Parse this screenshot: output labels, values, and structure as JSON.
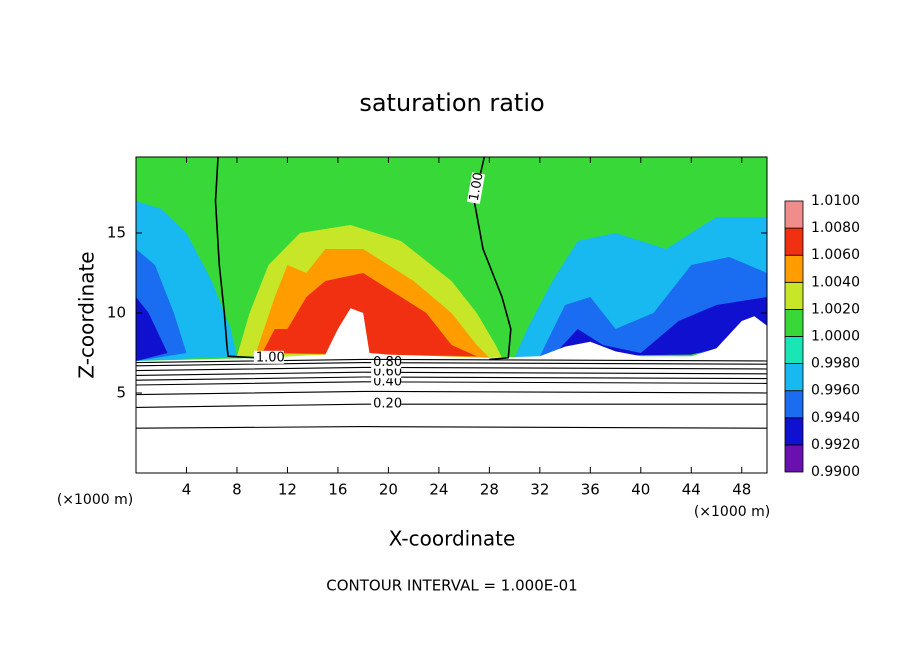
{
  "chart_data": {
    "type": "contour",
    "title": "saturation ratio",
    "x_label": "X-coordinate",
    "y_label": "Z-coordinate",
    "x_unit": "(×1000 m)",
    "y_unit": "(×1000 m)",
    "footer": "CONTOUR INTERVAL = 1.000E-01",
    "xlim": [
      0,
      50
    ],
    "ylim": [
      0,
      19.75
    ],
    "xticks": [
      4,
      8,
      12,
      16,
      20,
      24,
      28,
      32,
      36,
      40,
      44,
      48
    ],
    "yticks": [
      5,
      10,
      15
    ],
    "colorbar": {
      "levels": [
        {
          "value": 0.99,
          "label": "0.9900"
        },
        {
          "value": 0.992,
          "label": "0.9920"
        },
        {
          "value": 0.994,
          "label": "0.9940"
        },
        {
          "value": 0.996,
          "label": "0.9960"
        },
        {
          "value": 0.998,
          "label": "0.9980"
        },
        {
          "value": 1.0,
          "label": "1.0000"
        },
        {
          "value": 1.002,
          "label": "1.0020"
        },
        {
          "value": 1.004,
          "label": "1.0040"
        },
        {
          "value": 1.006,
          "label": "1.0060"
        },
        {
          "value": 1.008,
          "label": "1.0080"
        },
        {
          "value": 1.01,
          "label": "1.0100"
        }
      ],
      "colors": [
        "#6a10b0",
        "#1010d0",
        "#1a6cf0",
        "#18b8f0",
        "#18e6b4",
        "#38d838",
        "#c8e628",
        "#ff9c00",
        "#f03010",
        "#f08c8c"
      ]
    },
    "field": [
      {
        "value": 1.001,
        "x": [
          0,
          50,
          50,
          0
        ],
        "z": [
          7,
          7,
          19.75,
          19.75
        ]
      },
      {
        "value": 0.997,
        "x": [
          0,
          0,
          2,
          4,
          6,
          7.5,
          8
        ],
        "z": [
          7,
          17,
          16.5,
          15,
          12,
          9,
          7.3
        ]
      },
      {
        "value": 0.997,
        "x": [
          30,
          31,
          33,
          35,
          38,
          42,
          46,
          50,
          50,
          45
        ],
        "z": [
          7.2,
          9,
          12,
          14.5,
          15,
          14,
          16,
          16,
          8.5,
          8
        ]
      },
      {
        "value": 0.995,
        "x": [
          0,
          0,
          1.5,
          3,
          4
        ],
        "z": [
          7,
          14,
          13,
          10,
          7.5
        ]
      },
      {
        "value": 0.995,
        "x": [
          32,
          34,
          36,
          38,
          41,
          44,
          47,
          50,
          50,
          45
        ],
        "z": [
          7.3,
          10.5,
          11,
          9,
          10,
          13,
          13.5,
          12.5,
          8.5,
          7.5
        ]
      },
      {
        "value": 0.993,
        "x": [
          0,
          0,
          1,
          2.5
        ],
        "z": [
          7,
          11,
          10,
          7.5
        ]
      },
      {
        "value": 0.993,
        "x": [
          33,
          35,
          37,
          40,
          43,
          46,
          50,
          50,
          44
        ],
        "z": [
          7.3,
          9,
          8,
          7.5,
          9.5,
          10.5,
          11,
          8.5,
          7.4
        ]
      },
      {
        "value": 1.003,
        "x": [
          8,
          9,
          10.5,
          13,
          17,
          21,
          25,
          27,
          28.5,
          29
        ],
        "z": [
          7.3,
          10,
          13,
          15,
          15.5,
          14.5,
          12,
          10,
          8,
          7.2
        ]
      },
      {
        "value": 1.005,
        "x": [
          9.5,
          11,
          12,
          13.5,
          15,
          18,
          22,
          25,
          27,
          28
        ],
        "z": [
          7.5,
          11,
          13,
          12.5,
          14,
          14,
          12,
          10,
          8,
          7.2
        ]
      },
      {
        "value": 1.007,
        "x": [
          10,
          11,
          12,
          13.5,
          15,
          18,
          20,
          23,
          25,
          27
        ],
        "z": [
          7.5,
          9,
          9,
          11,
          12,
          12.5,
          11.5,
          10,
          8,
          7.3
        ]
      }
    ],
    "mask": {
      "x": [
        0,
        5,
        10,
        15,
        16,
        17,
        18,
        18.5,
        20,
        28,
        32,
        34,
        36,
        38,
        40,
        44,
        46,
        48,
        49,
        50,
        50,
        0
      ],
      "z": [
        7,
        7.1,
        7.2,
        7.4,
        9,
        10.3,
        10,
        7.5,
        7.4,
        7.2,
        7.3,
        7.9,
        8.2,
        7.6,
        7.3,
        7.3,
        7.8,
        9.5,
        9.8,
        9.2,
        0,
        0
      ]
    },
    "contours": [
      {
        "level": 0.1,
        "x": [
          0,
          18,
          50
        ],
        "z": [
          2.8,
          2.9,
          2.8
        ]
      },
      {
        "level": 0.2,
        "label": "0.20",
        "x": [
          0,
          18,
          50
        ],
        "z": [
          4.1,
          4.3,
          4.3
        ]
      },
      {
        "level": 0.3,
        "x": [
          0,
          18,
          50
        ],
        "z": [
          4.9,
          5.1,
          5.0
        ]
      },
      {
        "level": 0.4,
        "label": "0.40",
        "x": [
          0,
          18,
          50
        ],
        "z": [
          5.5,
          5.7,
          5.6
        ]
      },
      {
        "level": 0.5,
        "x": [
          0,
          18,
          50
        ],
        "z": [
          5.8,
          6.0,
          5.9
        ]
      },
      {
        "level": 0.6,
        "label": "0.60",
        "x": [
          0,
          18,
          50
        ],
        "z": [
          6.1,
          6.3,
          6.2
        ]
      },
      {
        "level": 0.7,
        "x": [
          0,
          18,
          50
        ],
        "z": [
          6.4,
          6.6,
          6.5
        ]
      },
      {
        "level": 0.8,
        "label": "0.80",
        "x": [
          0,
          18,
          50
        ],
        "z": [
          6.7,
          6.9,
          6.8
        ]
      },
      {
        "level": 0.9,
        "x": [
          0,
          18,
          50
        ],
        "z": [
          6.9,
          7.1,
          7.0
        ]
      },
      {
        "level": 1,
        "label": "1.00",
        "x": [
          6.5,
          6.3,
          6.6,
          7,
          7.2,
          7.3,
          9.5,
          11
        ],
        "z": [
          19.75,
          17,
          13,
          10,
          8,
          7.3,
          7.2,
          7.4
        ]
      },
      {
        "level": 1,
        "label": "1.00",
        "x": [
          27.6,
          26.8,
          27.5,
          29,
          29.7,
          29.5,
          28
        ],
        "z": [
          19.75,
          17,
          14,
          11,
          9,
          7.2,
          7.1
        ]
      }
    ]
  }
}
